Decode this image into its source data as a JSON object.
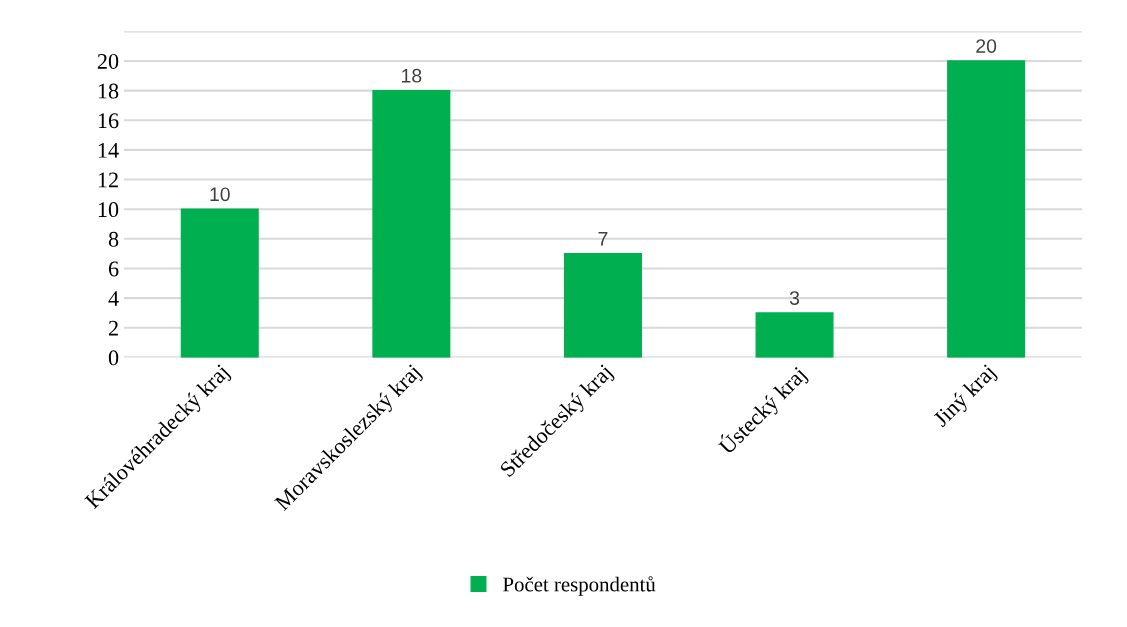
{
  "chart_data": {
    "type": "bar",
    "categories": [
      "Královéhradecký kraj",
      "Moravskoslezský kraj",
      "Středočeský kraj",
      "Ústecký kraj",
      "Jiný kraj"
    ],
    "series": [
      {
        "name": "Počet respondentů",
        "color": "#00b050",
        "values": [
          10,
          18,
          7,
          3,
          20
        ]
      }
    ],
    "ylim": [
      0,
      22
    ],
    "yticks": [
      0,
      2,
      4,
      6,
      8,
      10,
      12,
      14,
      16,
      18,
      20,
      {
        "value": 22,
        "label": null
      }
    ],
    "grid": "y",
    "legend": "bottom",
    "data_labels": true
  }
}
